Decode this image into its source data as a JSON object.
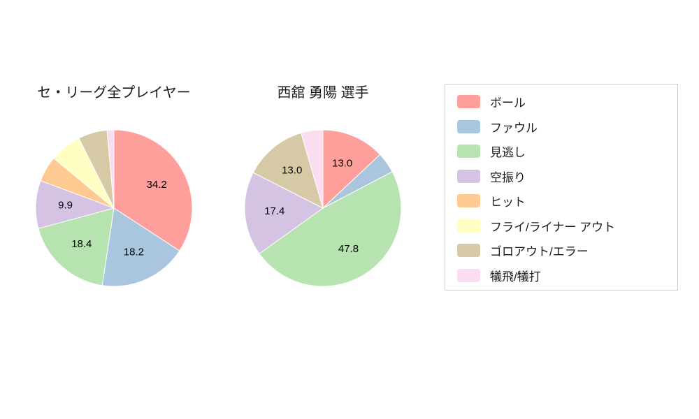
{
  "page": {
    "background": "#ffffff",
    "text_color": "#1a1a1a"
  },
  "chart_data": [
    {
      "type": "pie",
      "title": "セ・リーグ全プレイヤー",
      "categories": [
        "ボール",
        "ファウル",
        "見逃し",
        "空振り",
        "ヒット",
        "フライ/ライナー アウト",
        "ゴロアウト/エラー",
        "犠飛/犠打"
      ],
      "values": [
        34.2,
        18.2,
        18.4,
        9.9,
        5.3,
        6.6,
        6.0,
        1.4
      ],
      "shown_value_labels": [
        "34.2",
        "18.2",
        "18.4",
        "9.9",
        "",
        "",
        "",
        ""
      ],
      "colors": [
        "#ff9f9b",
        "#a9c6de",
        "#b6e3b0",
        "#d4c3e2",
        "#ffc992",
        "#ffffc4",
        "#d6caa6",
        "#fcdcf0"
      ],
      "start_angle": "top",
      "direction": "clockwise",
      "label_distance": 0.62,
      "legend_position": "right"
    },
    {
      "type": "pie",
      "title": "西舘 勇陽 選手",
      "categories": [
        "ボール",
        "ファウル",
        "見逃し",
        "空振り",
        "ヒット",
        "フライ/ライナー アウト",
        "ゴロアウト/エラー",
        "犠飛/犠打"
      ],
      "values": [
        13.0,
        4.3,
        47.8,
        17.4,
        0,
        0,
        13.0,
        4.5
      ],
      "shown_value_labels": [
        "13.0",
        "",
        "47.8",
        "17.4",
        "",
        "",
        "13.0",
        ""
      ],
      "colors": [
        "#ff9f9b",
        "#a9c6de",
        "#b6e3b0",
        "#d4c3e2",
        "#ffc992",
        "#ffffc4",
        "#d6caa6",
        "#fcdcf0"
      ],
      "start_angle": "top",
      "direction": "clockwise",
      "label_distance": 0.62,
      "legend_position": "right"
    }
  ],
  "legend": {
    "items": [
      {
        "label": "ボール",
        "color": "#ff9f9b"
      },
      {
        "label": "ファウル",
        "color": "#a9c6de"
      },
      {
        "label": "見逃し",
        "color": "#b6e3b0"
      },
      {
        "label": "空振り",
        "color": "#d4c3e2"
      },
      {
        "label": "ヒット",
        "color": "#ffc992"
      },
      {
        "label": "フライ/ライナー アウト",
        "color": "#ffffc4"
      },
      {
        "label": "ゴロアウト/エラー",
        "color": "#d6caa6"
      },
      {
        "label": "犠飛/犠打",
        "color": "#fcdcf0"
      }
    ]
  }
}
